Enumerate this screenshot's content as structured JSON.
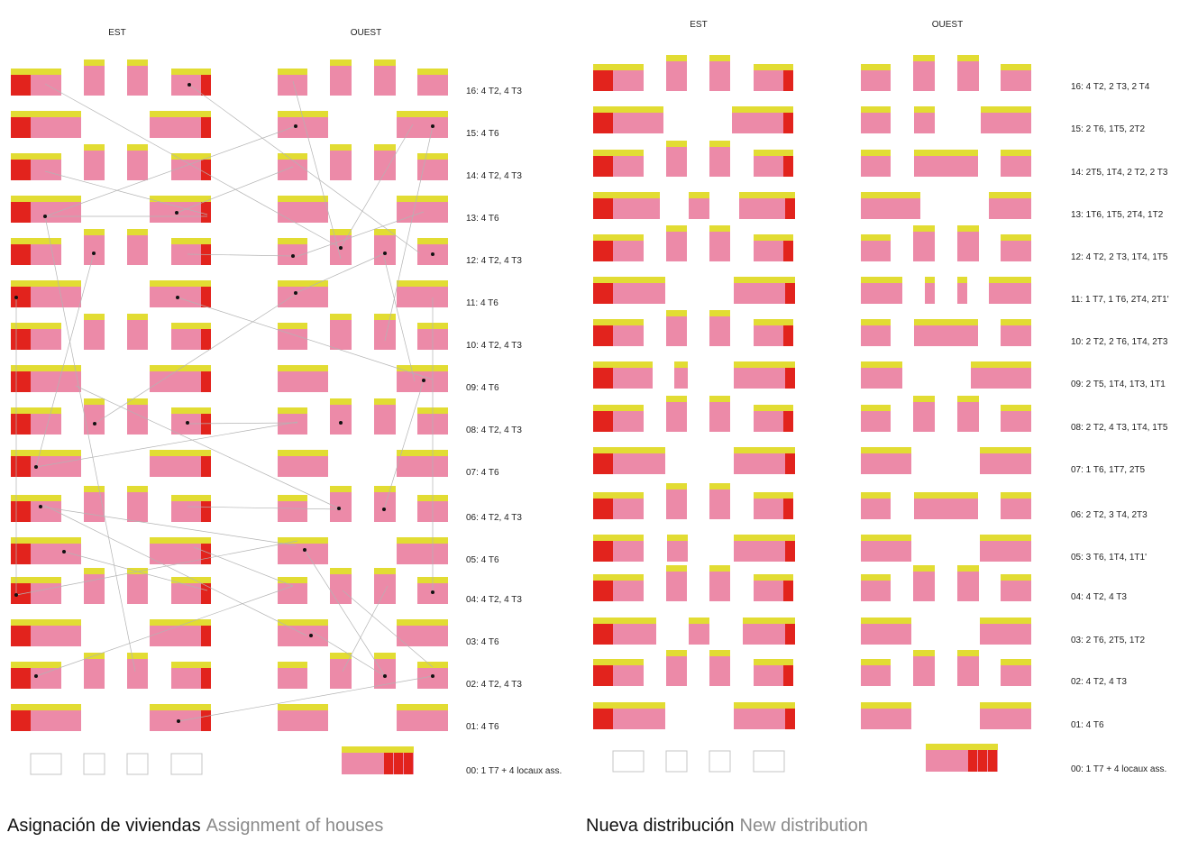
{
  "colors": {
    "pink": "#ec8aa8",
    "yellow": "#e2dc33",
    "red": "#e2231d",
    "line": "#b3b3b3",
    "text": "#222222",
    "empty_stroke": "#c4c4c4"
  },
  "panels": [
    {
      "id": "assignment",
      "headers": {
        "est": "EST",
        "ouest": "OUEST"
      },
      "caption": {
        "main": "Asignación de viviendas",
        "sub": "Assignment of houses"
      },
      "floors": [
        {
          "label": "16:",
          "desc": "4 T2, 4 T3"
        },
        {
          "label": "15:",
          "desc": "4 T6"
        },
        {
          "label": "14:",
          "desc": "4 T2, 4 T3"
        },
        {
          "label": "13:",
          "desc": "4 T6"
        },
        {
          "label": "12:",
          "desc": "4 T2, 4 T3"
        },
        {
          "label": "11:",
          "desc": "4 T6"
        },
        {
          "label": "10:",
          "desc": "4 T2, 4 T3"
        },
        {
          "label": "09:",
          "desc": "4 T6"
        },
        {
          "label": "08:",
          "desc": "4 T2, 4 T3"
        },
        {
          "label": "07:",
          "desc": "4 T6"
        },
        {
          "label": "06:",
          "desc": "4 T2, 4 T3"
        },
        {
          "label": "05:",
          "desc": "4 T6"
        },
        {
          "label": "04:",
          "desc": "4 T2, 4 T3"
        },
        {
          "label": "03:",
          "desc": "4 T6"
        },
        {
          "label": "02:",
          "desc": "4 T2, 4 T3"
        },
        {
          "label": "01:",
          "desc": "4 T6"
        },
        {
          "label": "00:",
          "desc": "1 T7 + 4 locaux ass."
        }
      ]
    },
    {
      "id": "distribution",
      "headers": {
        "est": "EST",
        "ouest": "OUEST"
      },
      "caption": {
        "main": "Nueva distribución",
        "sub": "New distribution"
      },
      "floors": [
        {
          "label": "16:",
          "desc": "4 T2, 2 T3, 2 T4"
        },
        {
          "label": "15:",
          "desc": "2 T6, 1T5, 2T2"
        },
        {
          "label": "14:",
          "desc": "2T5, 1T4, 2 T2, 2 T3"
        },
        {
          "label": "13:",
          "desc": "1T6, 1T5, 2T4, 1T2"
        },
        {
          "label": "12:",
          "desc": "4 T2, 2 T3, 1T4, 1T5"
        },
        {
          "label": "11:",
          "desc": "1 T7, 1 T6, 2T4, 2T1'"
        },
        {
          "label": "10:",
          "desc": "2 T2, 2 T6, 1T4, 2T3"
        },
        {
          "label": "09:",
          "desc": "2 T5, 1T4, 1T3, 1T1"
        },
        {
          "label": "08:",
          "desc": "2 T2, 4 T3, 1T4, 1T5"
        },
        {
          "label": "07:",
          "desc": "1 T6, 1T7, 2T5"
        },
        {
          "label": "06:",
          "desc": "2 T2, 3 T4, 2T3"
        },
        {
          "label": "05:",
          "desc": "3 T6, 1T4, 1T1'"
        },
        {
          "label": "04:",
          "desc": "4 T2, 4 T3"
        },
        {
          "label": "03:",
          "desc": "2 T6, 2T5, 1T2"
        },
        {
          "label": "02:",
          "desc": "4 T2, 4 T3"
        },
        {
          "label": "01:",
          "desc": "4 T6"
        },
        {
          "label": "00:",
          "desc": "1 T7 + 4 locaux ass."
        }
      ]
    }
  ]
}
